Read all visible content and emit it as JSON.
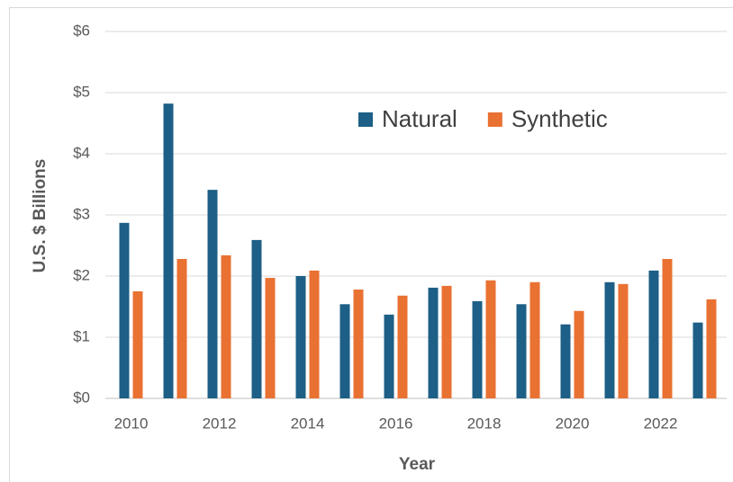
{
  "chart_data": {
    "type": "bar",
    "x_label": "Year",
    "y_label": "U.S. $ Billions",
    "categories": [
      "2010",
      null,
      "2012",
      null,
      "2014",
      null,
      "2016",
      null,
      "2018",
      null,
      "2020",
      null,
      "2022",
      null
    ],
    "series": [
      {
        "name": "Natural",
        "color": "#1d5f86",
        "values": [
          2.87,
          4.82,
          3.41,
          2.59,
          2.0,
          1.54,
          1.37,
          1.81,
          1.59,
          1.54,
          1.21,
          1.9,
          2.09,
          1.24
        ]
      },
      {
        "name": "Synthetic",
        "color": "#e97132",
        "values": [
          1.75,
          2.28,
          2.34,
          1.97,
          2.09,
          1.78,
          1.68,
          1.84,
          1.93,
          1.9,
          1.43,
          1.87,
          2.28,
          1.62
        ]
      }
    ],
    "ylim": [
      0,
      6
    ],
    "yticks": [
      {
        "value": 0,
        "label": "$0"
      },
      {
        "value": 1,
        "label": "$1"
      },
      {
        "value": 2,
        "label": "$2"
      },
      {
        "value": 3,
        "label": "$3"
      },
      {
        "value": 4,
        "label": "$4"
      },
      {
        "value": 5,
        "label": "$5"
      },
      {
        "value": 6,
        "label": "$6"
      }
    ],
    "grid": true,
    "legend": "upper-right"
  }
}
